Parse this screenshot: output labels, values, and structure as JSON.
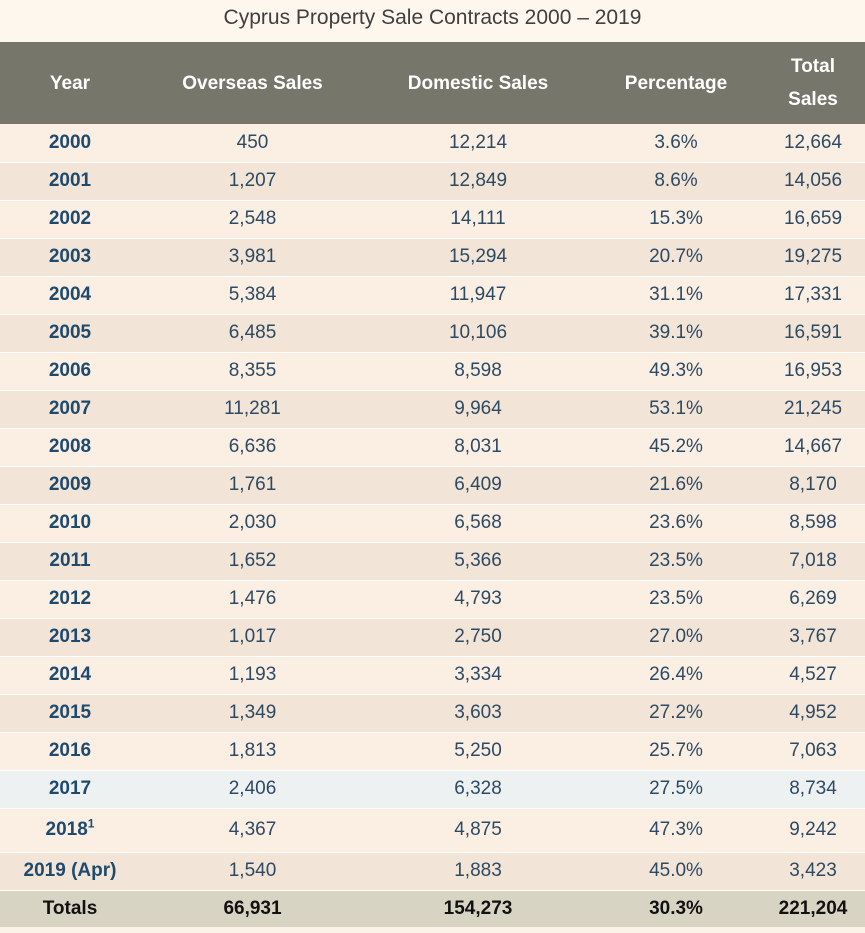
{
  "chart_data": {
    "type": "table",
    "title": "Cyprus Property Sale Contracts 2000 – 2019",
    "columns": [
      "Year",
      "Overseas Sales",
      "Domestic Sales",
      "Percentage",
      "Total Sales"
    ],
    "rows": [
      {
        "year": "2000",
        "overseas": "450",
        "domestic": "12,214",
        "percentage": "3.6%",
        "total": "12,664"
      },
      {
        "year": "2001",
        "overseas": "1,207",
        "domestic": "12,849",
        "percentage": "8.6%",
        "total": "14,056"
      },
      {
        "year": "2002",
        "overseas": "2,548",
        "domestic": "14,111",
        "percentage": "15.3%",
        "total": "16,659"
      },
      {
        "year": "2003",
        "overseas": "3,981",
        "domestic": "15,294",
        "percentage": "20.7%",
        "total": "19,275"
      },
      {
        "year": "2004",
        "overseas": "5,384",
        "domestic": "11,947",
        "percentage": "31.1%",
        "total": "17,331"
      },
      {
        "year": "2005",
        "overseas": "6,485",
        "domestic": "10,106",
        "percentage": "39.1%",
        "total": "16,591"
      },
      {
        "year": "2006",
        "overseas": "8,355",
        "domestic": "8,598",
        "percentage": "49.3%",
        "total": "16,953"
      },
      {
        "year": "2007",
        "overseas": "11,281",
        "domestic": "9,964",
        "percentage": "53.1%",
        "total": "21,245"
      },
      {
        "year": "2008",
        "overseas": "6,636",
        "domestic": "8,031",
        "percentage": "45.2%",
        "total": "14,667"
      },
      {
        "year": "2009",
        "overseas": "1,761",
        "domestic": "6,409",
        "percentage": "21.6%",
        "total": "8,170"
      },
      {
        "year": "2010",
        "overseas": "2,030",
        "domestic": "6,568",
        "percentage": "23.6%",
        "total": "8,598"
      },
      {
        "year": "2011",
        "overseas": "1,652",
        "domestic": "5,366",
        "percentage": "23.5%",
        "total": "7,018"
      },
      {
        "year": "2012",
        "overseas": "1,476",
        "domestic": "4,793",
        "percentage": "23.5%",
        "total": "6,269"
      },
      {
        "year": "2013",
        "overseas": "1,017",
        "domestic": "2,750",
        "percentage": "27.0%",
        "total": "3,767"
      },
      {
        "year": "2014",
        "overseas": "1,193",
        "domestic": "3,334",
        "percentage": "26.4%",
        "total": "4,527"
      },
      {
        "year": "2015",
        "overseas": "1,349",
        "domestic": "3,603",
        "percentage": "27.2%",
        "total": "4,952"
      },
      {
        "year": "2016",
        "overseas": "1,813",
        "domestic": "5,250",
        "percentage": "25.7%",
        "total": "7,063"
      },
      {
        "year": "2017",
        "overseas": "2,406",
        "domestic": "6,328",
        "percentage": "27.5%",
        "total": "8,734"
      },
      {
        "year": "2018",
        "footnote": "1",
        "overseas": "4,367",
        "domestic": "4,875",
        "percentage": "47.3%",
        "total": "9,242"
      },
      {
        "year": "2019 (Apr)",
        "overseas": "1,540",
        "domestic": "1,883",
        "percentage": "45.0%",
        "total": "3,423"
      }
    ],
    "totals": {
      "label": "Totals",
      "overseas": "66,931",
      "domestic": "154,273",
      "percentage": "30.3%",
      "total": "221,204"
    }
  },
  "header": {
    "year": "Year",
    "overseas": "Overseas Sales",
    "domestic": "Domestic Sales",
    "percentage": "Percentage",
    "total_line1": "Total",
    "total_line2": "Sales"
  },
  "colors": {
    "header_bg": "#76766b",
    "header_text": "#ffffff",
    "year_text": "#1e4a6e",
    "cell_text": "#2d4a64",
    "row_light": "#fbefe3",
    "row_dark": "#f2e4d6",
    "totals_bg": "#d8d4c4"
  }
}
